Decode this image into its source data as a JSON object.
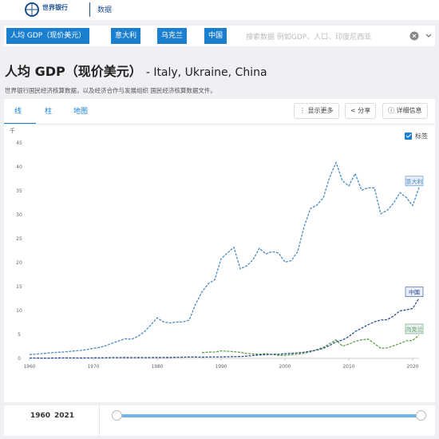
{
  "header": {
    "logo": "世界银行",
    "section": "数据"
  },
  "search": {
    "tags": [
      "人均 GDP（现价美元）",
      "意大利",
      "乌克兰",
      "中国"
    ],
    "placeholder": "搜索数据 例如GDP、人口、印度尼西亚"
  },
  "page": {
    "title": "人均 GDP（现价美元）",
    "subtitle": "- Italy, Ukraine, China",
    "source": "世界银行国民经济核算数据，以及经济合作与发展组织 国民经济核算数据文件。"
  },
  "tabs": [
    "线",
    "柱",
    "地图"
  ],
  "actions": [
    "显示更多",
    "分享",
    "详细信息"
  ],
  "chart_data": {
    "type": "line",
    "y_unit": "千",
    "labels_toggle": "标签",
    "x": [
      1960,
      1961,
      1962,
      1963,
      1964,
      1965,
      1966,
      1967,
      1968,
      1969,
      1970,
      1971,
      1972,
      1973,
      1974,
      1975,
      1976,
      1977,
      1978,
      1979,
      1980,
      1981,
      1982,
      1983,
      1984,
      1985,
      1986,
      1987,
      1988,
      1989,
      1990,
      1991,
      1992,
      1993,
      1994,
      1995,
      1996,
      1997,
      1998,
      1999,
      2000,
      2001,
      2002,
      2003,
      2004,
      2005,
      2006,
      2007,
      2008,
      2009,
      2010,
      2011,
      2012,
      2013,
      2014,
      2015,
      2016,
      2017,
      2018,
      2019,
      2020,
      2021
    ],
    "xlim": [
      1960,
      2021
    ],
    "xticks": [
      1960,
      1970,
      1980,
      1990,
      2000,
      2010,
      2020
    ],
    "ylim": [
      0,
      45
    ],
    "yticks": [
      0,
      5,
      10,
      15,
      20,
      25,
      30,
      35,
      40,
      45
    ],
    "grid": false,
    "series": [
      {
        "name": "意大利",
        "color": "#4a8ac4",
        "values": [
          0.8,
          0.89,
          1.0,
          1.13,
          1.23,
          1.32,
          1.42,
          1.55,
          1.67,
          1.84,
          2.11,
          2.3,
          2.67,
          3.2,
          3.67,
          4.1,
          4.0,
          4.6,
          5.6,
          6.99,
          8.46,
          7.6,
          7.4,
          7.6,
          7.6,
          7.99,
          11.3,
          13.9,
          15.6,
          16.4,
          20.8,
          22.0,
          23.2,
          18.7,
          19.3,
          20.6,
          23.0,
          21.8,
          22.3,
          22.0,
          20.1,
          20.4,
          22.3,
          27.5,
          31.3,
          32.0,
          33.5,
          37.8,
          40.9,
          37.1,
          36.0,
          38.6,
          35.1,
          35.6,
          35.6,
          30.2,
          30.9,
          32.4,
          34.6,
          33.6,
          31.9,
          35.7
        ]
      },
      {
        "name": "乌克兰",
        "color": "#5a9e4b",
        "values": [
          null,
          null,
          null,
          null,
          null,
          null,
          null,
          null,
          null,
          null,
          null,
          null,
          null,
          null,
          null,
          null,
          null,
          null,
          null,
          null,
          null,
          null,
          null,
          null,
          null,
          null,
          null,
          1.2,
          1.3,
          1.31,
          1.57,
          1.49,
          1.42,
          1.26,
          1.01,
          0.94,
          0.87,
          0.99,
          0.83,
          0.64,
          0.64,
          0.78,
          0.88,
          1.05,
          1.37,
          1.83,
          2.3,
          3.07,
          3.89,
          2.55,
          2.97,
          3.57,
          3.86,
          4.03,
          3.1,
          2.12,
          2.19,
          2.64,
          3.1,
          3.66,
          3.75,
          4.84
        ]
      },
      {
        "name": "中国",
        "color": "#2f4d8a",
        "values": [
          0.09,
          0.08,
          0.07,
          0.07,
          0.09,
          0.1,
          0.1,
          0.1,
          0.09,
          0.1,
          0.11,
          0.12,
          0.13,
          0.16,
          0.16,
          0.18,
          0.17,
          0.19,
          0.16,
          0.18,
          0.2,
          0.2,
          0.2,
          0.23,
          0.25,
          0.29,
          0.28,
          0.25,
          0.28,
          0.31,
          0.32,
          0.33,
          0.37,
          0.38,
          0.47,
          0.61,
          0.71,
          0.78,
          0.83,
          0.87,
          0.96,
          1.05,
          1.15,
          1.29,
          1.51,
          1.75,
          2.1,
          2.69,
          3.47,
          3.83,
          4.55,
          5.61,
          6.3,
          7.02,
          7.64,
          8.02,
          8.09,
          8.82,
          9.91,
          10.14,
          10.41,
          12.56
        ]
      }
    ]
  },
  "range": {
    "start": 1960,
    "end": 2021
  }
}
